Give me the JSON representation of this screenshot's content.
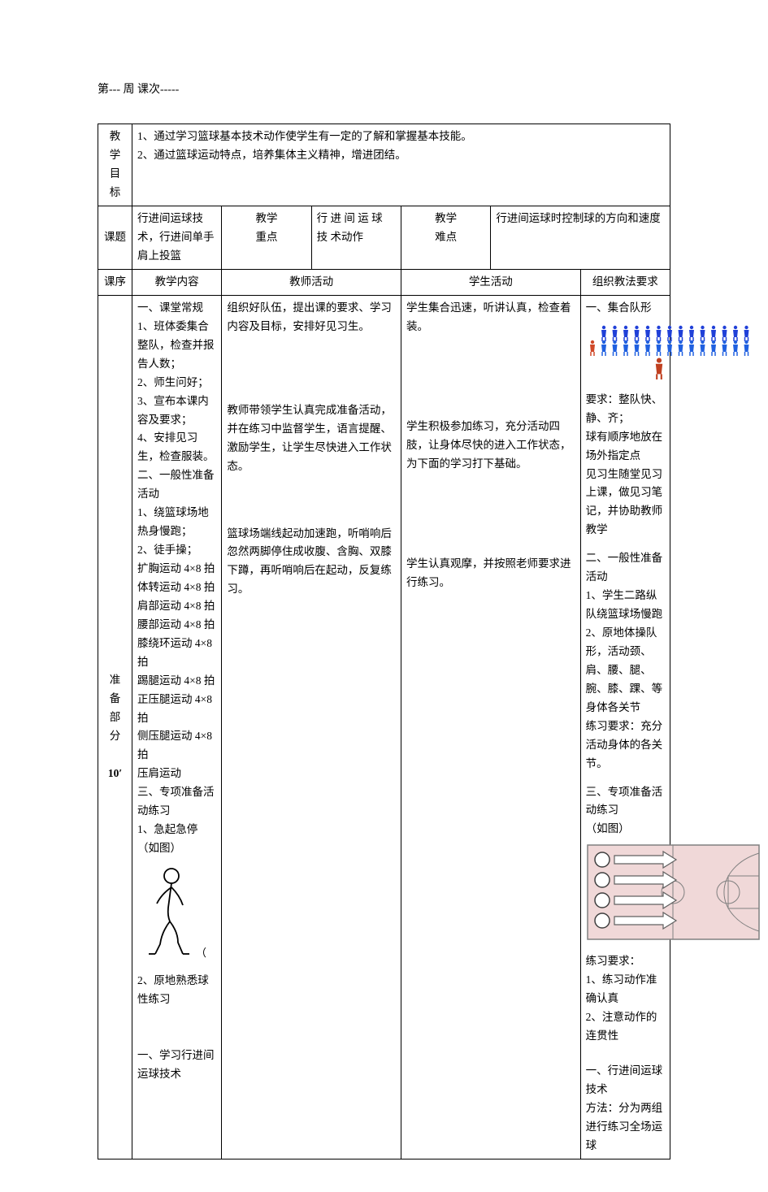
{
  "header": {
    "week_label": "第---  周      课次-----"
  },
  "table": {
    "row_goals": {
      "label": "教 学\n目 标",
      "content": "1、通过学习篮球基本技术动作使学生有一定的了解和掌握基本技能。\n2、通过篮球运动特点，培养集体主义精神，增进团结。"
    },
    "row_topic": {
      "label": "课题",
      "topic": "行进间运球技术，行进间单手肩上投篮",
      "focus_label": "教学重点",
      "focus": "行 进 间 运 球 技 术动作",
      "difficulty_label": "教学难点",
      "difficulty": "行进间运球时控制球的方向和速度"
    },
    "row_headers": {
      "c1": "课序",
      "c2": "教学内容",
      "c3": "教师活动",
      "c4": "学生活动",
      "c5": "组织教法要求"
    },
    "prep": {
      "phase_label": "准\n备\n部\n分",
      "phase_time": "10′",
      "teaching_content": "一、课堂常规\n1、班体委集合整队，检查并报告人数；\n2、师生问好；\n3、宣布本课内容及要求；\n4、安排见习生，检查服装。\n二、一般性准备活动\n1、绕篮球场地热身慢跑；\n2、徒手操；\n扩胸运动  4×8 拍\n体转运动  4×8 拍\n肩部运动  4×8 拍\n腰部运动  4×8 拍\n膝绕环运动  4×8 拍\n踢腿运动  4×8 拍\n正压腿运动 4×8 拍\n侧压腿运动 4×8 拍\n压肩运动\n三、专项准备活动练习\n1、急起急停（如图）",
      "teaching_content_2": "2、原地熟悉球性练习\n\n\n一、学习行进间运球技术",
      "teacher_activity_1": "组织好队伍，提出课的要求、学习内容及目标，安排好见习生。",
      "teacher_activity_2": "教师带领学生认真完成准备活动，并在练习中监督学生，语言提醒、激励学生，让学生尽快进入工作状态。",
      "teacher_activity_3": "篮球场端线起动加速跑，听哨响后忽然两脚停住成收腹、含胸、双膝下蹲，再听哨响后在起动，反复练习。",
      "student_activity_1": "学生集合迅速，听讲认真，检查着装。",
      "student_activity_2": "学生积极参加练习，充分活动四肢，让身体尽快的进入工作状态，为下面的学习打下基础。",
      "student_activity_3": "学生认真观摩，并按照老师要求进行练习。",
      "org_1_title": "一、集合队形",
      "org_1_req": "要求：整队快、静、齐；\n球有顺序地放在场外指定点\n见习生随堂见习上课，做见习笔记，并协助教师教学",
      "org_2_title": "二、一般性准备活动",
      "org_2_content": "1、学生二路纵队绕篮球场慢跑\n2、原地体操队形，活动颈、肩、腰、腿、腕、膝、踝、等身体各关节\n练习要求：充分活动身体的各关节。",
      "org_3_title": "三、专项准备活动练习\n（如图）",
      "org_3_req": "练习要求：\n1、练习动作准确认真\n2、注意动作的连贯性",
      "org_4": "一、行进间运球技术\n方法：分为两组进行练习全场运球"
    }
  },
  "styling": {
    "page_bg": "#ffffff",
    "text_color": "#000000",
    "border_color": "#000000",
    "font_family": "SimSun",
    "base_font_size": 14,
    "formation": {
      "row1_color": "#2040d8",
      "row2_color": "#2060e0",
      "teacher_color": "#c04020",
      "leader_color": "#d04828",
      "count_per_row": 14
    },
    "court": {
      "bg": "#f0d8d8",
      "line": "#808080",
      "arrow_fill": "#ffffff",
      "arrow_outline": "#606060",
      "circle_fill": "#ffffff",
      "circle_outline": "#404040"
    }
  }
}
